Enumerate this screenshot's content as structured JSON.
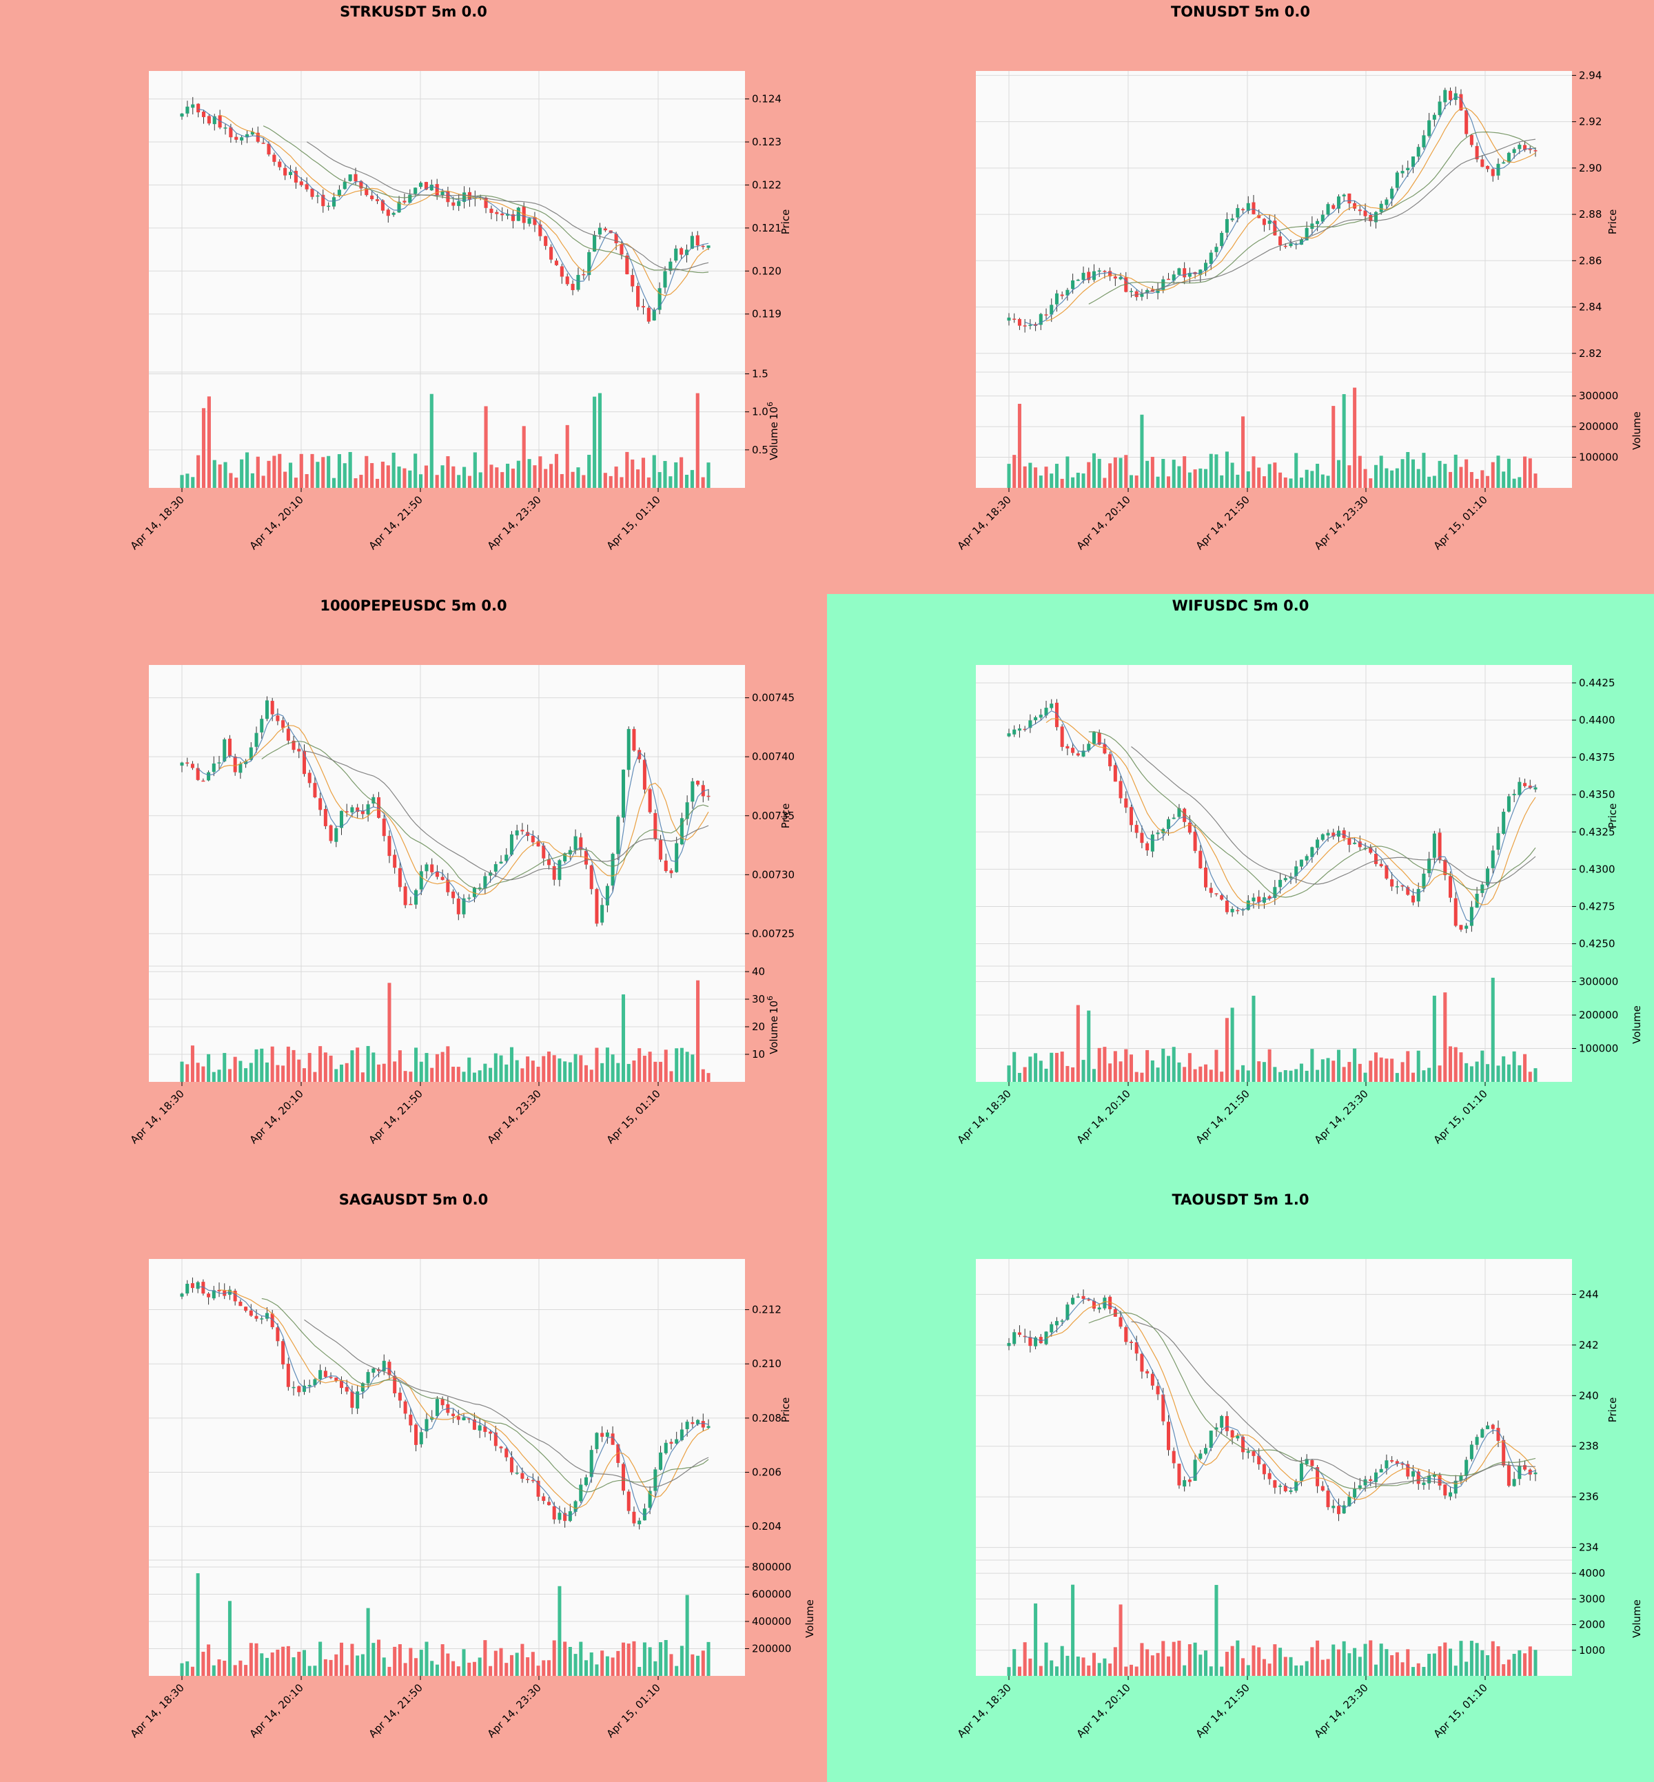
{
  "colors": {
    "loss_bg": "#f8a69a",
    "win_bg": "#91fdc6",
    "plot_bg": "#fafafa",
    "grid": "#d9d9d9",
    "up": "#26a67a",
    "down": "#ef4343",
    "vol_up": "#3fbf93",
    "vol_down": "#f26666",
    "ma_fast": "#4f7fb0",
    "ma_mid": "#e8962e",
    "ma_slow": "#6b8e5a",
    "ma_long": "#777777"
  },
  "x_ticks": [
    "Apr 14, 18:30",
    "Apr 14, 20:10",
    "Apr 14, 21:50",
    "Apr 14, 23:30",
    "Apr 15, 01:10"
  ],
  "price_label": "Price",
  "volume_label": "Volume",
  "chart_data": [
    {
      "type": "candlestick",
      "title": "STRKUSDT 5m 0.0",
      "background": "loss",
      "price_ticks": [
        "0.124",
        "0.123",
        "0.122",
        "0.121",
        "0.120",
        "0.119"
      ],
      "price_tick_values": [
        0.124,
        0.123,
        0.122,
        0.121,
        0.12,
        0.119
      ],
      "ylim": [
        0.11765,
        0.12465
      ],
      "volume_ticks": [
        "1.5",
        "1.0",
        "0.5"
      ],
      "volume_tick_values": [
        1.5,
        1.0,
        0.5
      ],
      "volume_exponent": "10",
      "volume_exponent_power": "6",
      "vlim": [
        0,
        1.45
      ],
      "close_path": [
        0.1238,
        0.124,
        0.1236,
        0.1235,
        0.1233,
        0.1231,
        0.1232,
        0.1231,
        0.1226,
        0.1223,
        0.1222,
        0.122,
        0.1218,
        0.1215,
        0.1218,
        0.1222,
        0.1221,
        0.1219,
        0.1216,
        0.1212,
        0.1215,
        0.1218,
        0.1221,
        0.1219,
        0.1218,
        0.1215,
        0.1217,
        0.1218,
        0.1216,
        0.1213,
        0.1212,
        0.1214,
        0.1211,
        0.1208,
        0.1203,
        0.1198,
        0.1196,
        0.12,
        0.1208,
        0.121,
        0.1206,
        0.12,
        0.1193,
        0.1188,
        0.1196,
        0.1203,
        0.1205,
        0.1207,
        0.1206
      ]
    },
    {
      "type": "candlestick",
      "title": "TONUSDT 5m 0.0",
      "background": "loss",
      "price_ticks": [
        "2.94",
        "2.92",
        "2.90",
        "2.88",
        "2.86",
        "2.84",
        "2.82"
      ],
      "price_tick_values": [
        2.94,
        2.92,
        2.9,
        2.88,
        2.86,
        2.84,
        2.82
      ],
      "ylim": [
        2.8119,
        2.9419
      ],
      "volume_ticks": [
        "300000",
        "200000",
        "100000"
      ],
      "volume_tick_values": [
        300000,
        200000,
        100000
      ],
      "volume_exponent": "",
      "volume_exponent_power": "",
      "vlim": [
        0,
        360000
      ],
      "close_path": [
        2.838,
        2.833,
        2.83,
        2.835,
        2.842,
        2.846,
        2.85,
        2.853,
        2.855,
        2.857,
        2.853,
        2.848,
        2.843,
        2.846,
        2.849,
        2.852,
        2.855,
        2.853,
        2.857,
        2.862,
        2.872,
        2.88,
        2.883,
        2.882,
        2.878,
        2.872,
        2.866,
        2.868,
        2.873,
        2.879,
        2.883,
        2.886,
        2.887,
        2.882,
        2.879,
        2.885,
        2.892,
        2.899,
        2.905,
        2.915,
        2.925,
        2.932,
        2.93,
        2.915,
        2.903,
        2.897,
        2.9,
        2.906,
        2.908,
        2.907
      ]
    },
    {
      "type": "candlestick",
      "title": "1000PEPEUSDC 5m 0.0",
      "background": "loss",
      "price_ticks": [
        "0.00745",
        "0.00740",
        "0.00735",
        "0.00730",
        "0.00725"
      ],
      "price_tick_values": [
        0.00745,
        0.0074,
        0.00735,
        0.0073,
        0.00725
      ],
      "ylim": [
        0.0072225,
        0.0074778
      ],
      "volume_ticks": [
        "40",
        "30",
        "20",
        "10"
      ],
      "volume_tick_values": [
        40,
        30,
        20,
        10
      ],
      "volume_exponent": "10",
      "volume_exponent_power": "6",
      "vlim": [
        0,
        40
      ],
      "close_path": [
        0.0074,
        0.00739,
        0.00738,
        0.00739,
        0.00741,
        0.00739,
        0.0074,
        0.00742,
        0.00745,
        0.00743,
        0.00741,
        0.0074,
        0.00738,
        0.00735,
        0.00733,
        0.00735,
        0.00736,
        0.00735,
        0.00737,
        0.00733,
        0.00731,
        0.00727,
        0.00729,
        0.00731,
        0.0073,
        0.00729,
        0.00727,
        0.00728,
        0.00729,
        0.0073,
        0.00731,
        0.00733,
        0.00734,
        0.00733,
        0.00731,
        0.0073,
        0.00732,
        0.00733,
        0.00731,
        0.00726,
        0.00729,
        0.00735,
        0.00742,
        0.0074,
        0.00735,
        0.00731,
        0.0073,
        0.00735,
        0.00738,
        0.00737
      ]
    },
    {
      "type": "candlestick",
      "title": "WIFUSDC 5m 0.0",
      "background": "win",
      "price_ticks": [
        "0.4425",
        "0.4400",
        "0.4375",
        "0.4350",
        "0.4325",
        "0.4300",
        "0.4275",
        "0.4250"
      ],
      "price_tick_values": [
        0.4425,
        0.44,
        0.4375,
        0.435,
        0.4325,
        0.43,
        0.4275,
        0.425
      ],
      "ylim": [
        0.4235,
        0.4437
      ],
      "volume_ticks": [
        "300000",
        "200000",
        "100000"
      ],
      "volume_tick_values": [
        300000,
        200000,
        100000
      ],
      "volume_exponent": "",
      "volume_exponent_power": "",
      "vlim": [
        0,
        330000
      ],
      "close_path": [
        0.4395,
        0.4392,
        0.4396,
        0.44,
        0.441,
        0.4385,
        0.4378,
        0.4382,
        0.4388,
        0.4375,
        0.436,
        0.434,
        0.4322,
        0.4315,
        0.4325,
        0.4335,
        0.434,
        0.4325,
        0.4298,
        0.4282,
        0.4278,
        0.4272,
        0.4276,
        0.428,
        0.428,
        0.4286,
        0.4292,
        0.43,
        0.4312,
        0.4322,
        0.4325,
        0.4322,
        0.4318,
        0.4318,
        0.431,
        0.43,
        0.429,
        0.4292,
        0.428,
        0.4298,
        0.432,
        0.43,
        0.426,
        0.4265,
        0.428,
        0.43,
        0.4325,
        0.4345,
        0.4355,
        0.4353
      ]
    },
    {
      "type": "candlestick",
      "title": "SAGAUSDT 5m 0.0",
      "background": "loss",
      "price_ticks": [
        "0.212",
        "0.210",
        "0.208",
        "0.206",
        "0.204"
      ],
      "price_tick_values": [
        0.212,
        0.21,
        0.208,
        0.206,
        0.204
      ],
      "ylim": [
        0.20276,
        0.21387
      ],
      "volume_ticks": [
        "800000",
        "600000",
        "400000",
        "200000"
      ],
      "volume_tick_values": [
        800000,
        600000,
        400000,
        200000
      ],
      "volume_exponent": "",
      "volume_exponent_power": "",
      "vlim": [
        0,
        810000
      ],
      "close_path": [
        0.2128,
        0.213,
        0.2126,
        0.2125,
        0.2126,
        0.2125,
        0.2118,
        0.2115,
        0.2118,
        0.211,
        0.209,
        0.209,
        0.2093,
        0.2098,
        0.2095,
        0.209,
        0.2086,
        0.2094,
        0.2098,
        0.21,
        0.209,
        0.2082,
        0.2072,
        0.2078,
        0.2085,
        0.2082,
        0.208,
        0.2078,
        0.2076,
        0.2073,
        0.207,
        0.2062,
        0.2058,
        0.2055,
        0.205,
        0.2043,
        0.2043,
        0.205,
        0.206,
        0.2075,
        0.2075,
        0.2063,
        0.2045,
        0.204,
        0.2055,
        0.2068,
        0.2072,
        0.2075,
        0.2078,
        0.2078
      ]
    },
    {
      "type": "candlestick",
      "title": "TAOUSDT 5m 1.0",
      "background": "win",
      "price_ticks": [
        "244",
        "242",
        "240",
        "238",
        "236",
        "234"
      ],
      "price_tick_values": [
        244,
        242,
        240,
        238,
        236,
        234
      ],
      "ylim": [
        233.5,
        245.4
      ],
      "volume_ticks": [
        "4000",
        "3000",
        "2000",
        "1000"
      ],
      "volume_tick_values": [
        4000,
        3000,
        2000,
        1000
      ],
      "volume_exponent": "",
      "volume_exponent_power": "",
      "vlim": [
        0,
        4300
      ],
      "close_path": [
        242.3,
        242.5,
        242.2,
        242.3,
        242.6,
        243.2,
        244.0,
        243.8,
        243.5,
        243.9,
        243.2,
        242.3,
        241.5,
        240.8,
        240.0,
        238.0,
        236.5,
        236.8,
        237.8,
        238.5,
        239.0,
        238.5,
        238.0,
        237.8,
        237.0,
        236.5,
        236.0,
        236.8,
        237.5,
        236.5,
        235.8,
        235.5,
        236.0,
        236.3,
        236.8,
        237.3,
        237.5,
        237.2,
        236.8,
        236.6,
        236.7,
        236.2,
        236.6,
        237.3,
        238.5,
        239.0,
        238.0,
        236.5,
        237.0,
        236.8
      ]
    }
  ]
}
